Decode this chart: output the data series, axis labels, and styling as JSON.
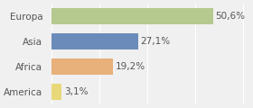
{
  "categories": [
    "Europa",
    "Asia",
    "Africa",
    "America"
  ],
  "values": [
    50.6,
    27.1,
    19.2,
    3.1
  ],
  "labels": [
    "50,6%",
    "27,1%",
    "19,2%",
    "3,1%"
  ],
  "bar_colors": [
    "#b5c98e",
    "#6b8cba",
    "#e8b07a",
    "#e8d87a"
  ],
  "background_color": "#f0f0f0",
  "xlim": [
    0,
    62
  ],
  "label_fontsize": 7.5,
  "category_fontsize": 7.5
}
